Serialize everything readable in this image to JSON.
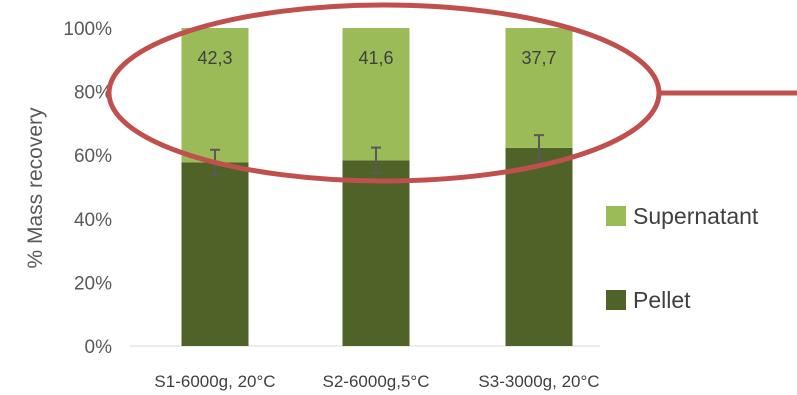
{
  "chart_data": {
    "type": "bar",
    "stacked": true,
    "percent_stacked": true,
    "categories": [
      "S1-6000g, 20°C",
      "S2-6000g,5°C",
      "S3-3000g, 20°C"
    ],
    "series": [
      {
        "name": "Pellet",
        "values": [
          57.7,
          58.4,
          62.3
        ],
        "error": [
          4.0,
          4.0,
          4.0
        ],
        "color": "#4f6228"
      },
      {
        "name": "Supernatant",
        "values": [
          42.3,
          41.6,
          37.7
        ],
        "color": "#9bbb59"
      }
    ],
    "data_labels": [
      "42,3",
      "41,6",
      "37,7"
    ],
    "ylabel": "% Mass recovery",
    "xlabel": "",
    "title": "",
    "ylim": [
      0,
      100
    ],
    "yticks": [
      "0%",
      "20%",
      "40%",
      "60%",
      "80%",
      "100%"
    ],
    "grid": false,
    "legend_position": "right",
    "annotation": {
      "shape": "ellipse",
      "color": "#c0504d"
    },
    "error_bar_color": "#595959"
  }
}
